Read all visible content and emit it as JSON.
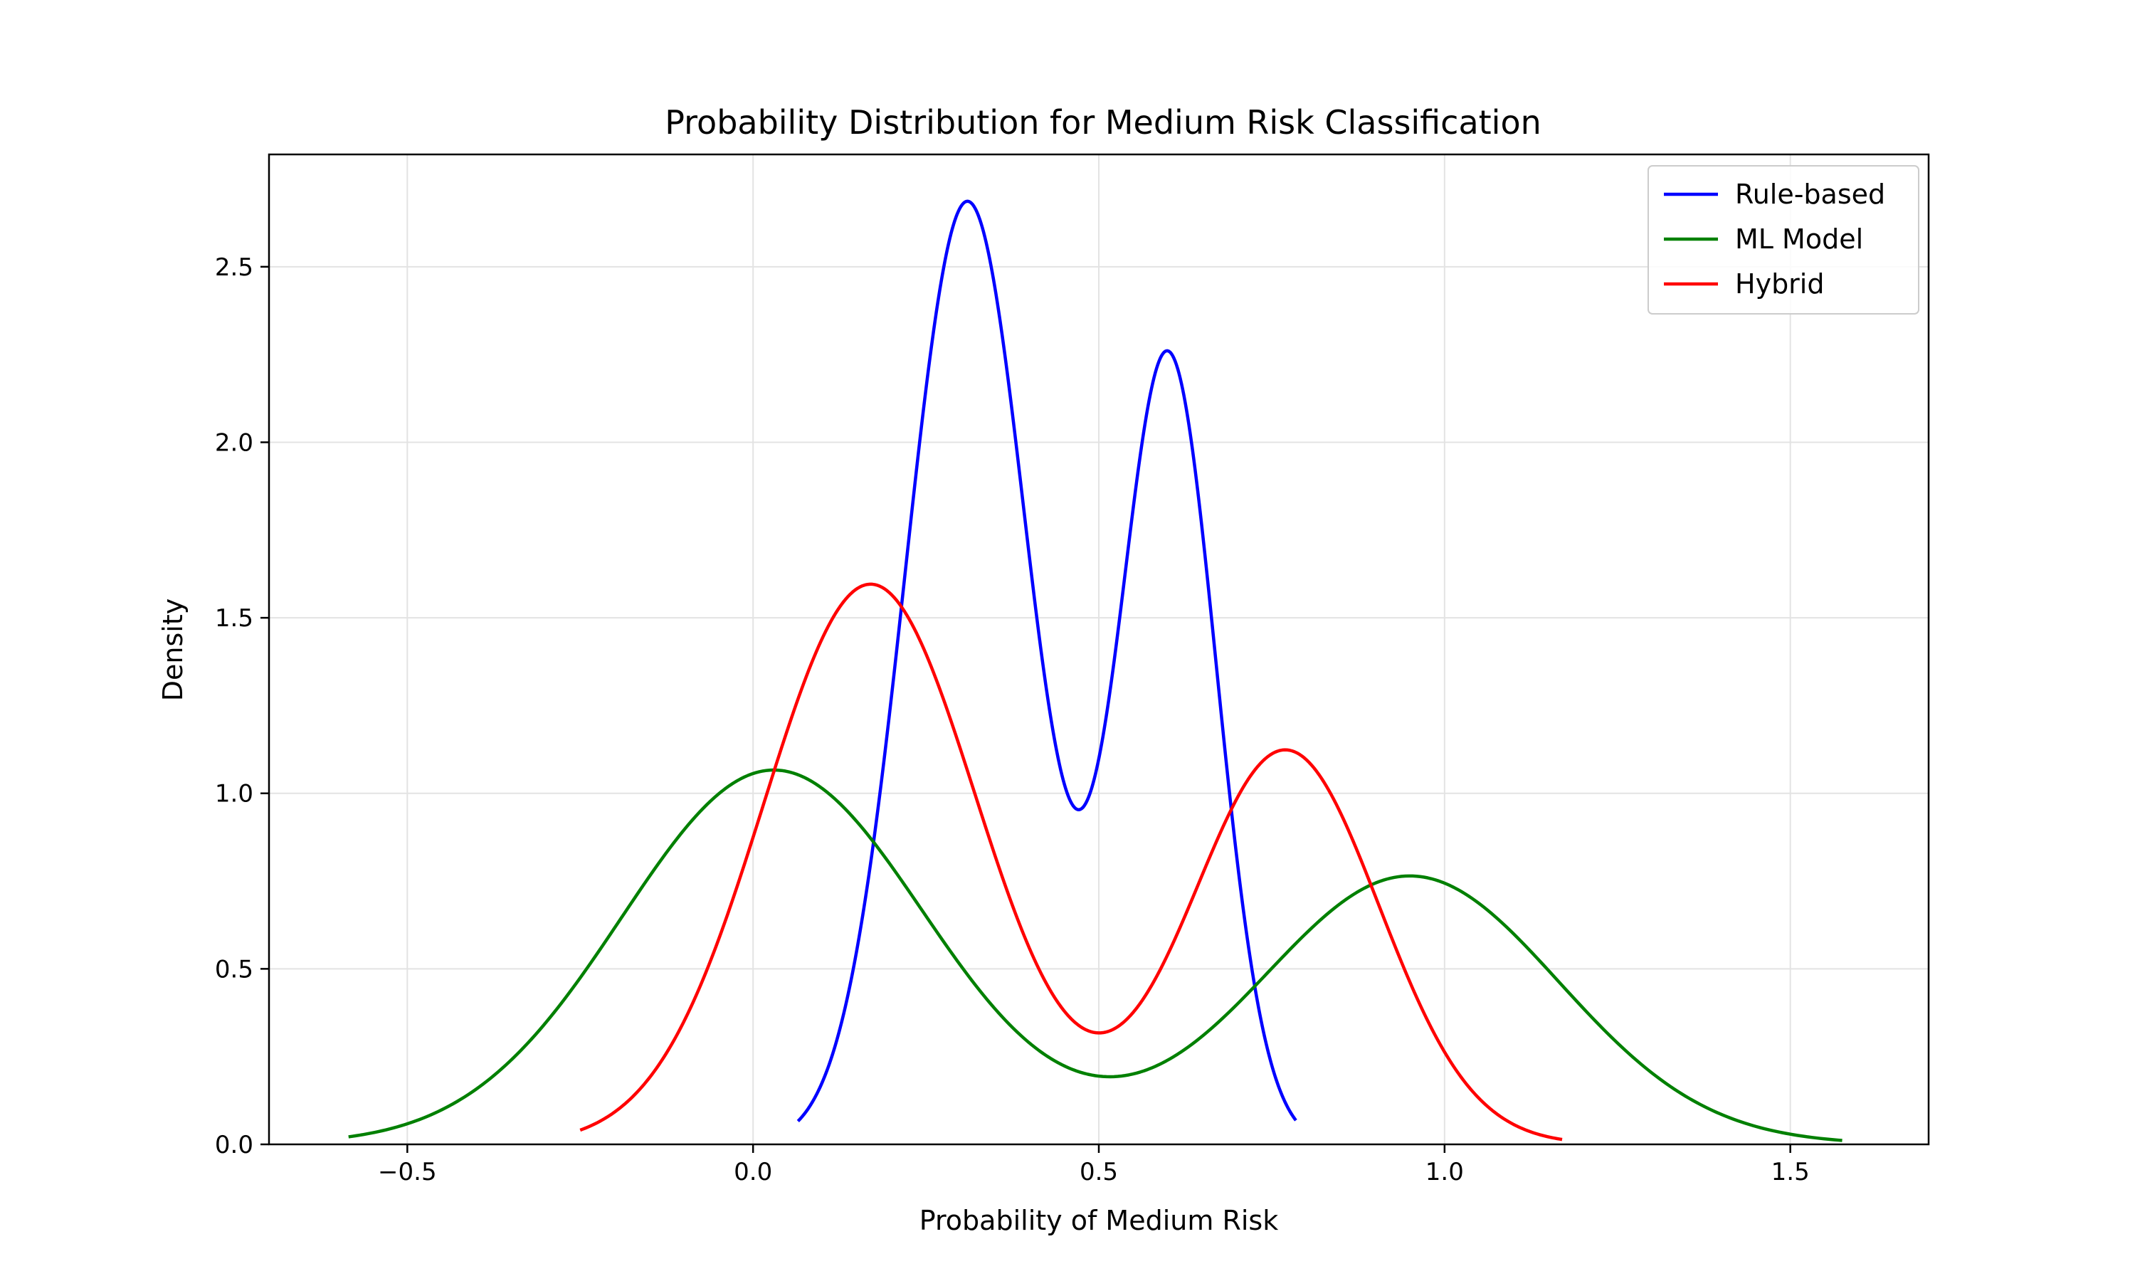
{
  "chart_data": {
    "type": "line",
    "title": "Probability Distribution for Medium Risk Classification",
    "xlabel": "Probability of Medium Risk",
    "ylabel": "Density",
    "xlim": [
      -0.7,
      1.7
    ],
    "ylim": [
      0,
      2.82
    ],
    "xticks": [
      -0.5,
      0.0,
      0.5,
      1.0,
      1.5
    ],
    "xtick_labels": [
      "−0.5",
      "0.0",
      "0.5",
      "1.0",
      "1.5"
    ],
    "yticks": [
      0.0,
      0.5,
      1.0,
      1.5,
      2.0,
      2.5
    ],
    "ytick_labels": [
      "0.0",
      "0.5",
      "1.0",
      "1.5",
      "2.0",
      "2.5"
    ],
    "grid": true,
    "legend_position": "top-right",
    "series": [
      {
        "name": "Rule-based",
        "color": "#0000ff",
        "x_range": [
          0.065,
          0.785
        ],
        "components": [
          {
            "weight": 0.606,
            "mean": 0.31,
            "sd": 0.09
          },
          {
            "weight": 0.394,
            "mean": 0.6,
            "sd": 0.07
          }
        ]
      },
      {
        "name": "ML Model",
        "color": "#008000",
        "x_range": [
          -0.585,
          1.575
        ],
        "components": [
          {
            "weight": 0.588,
            "mean": 0.03,
            "sd": 0.22
          },
          {
            "weight": 0.412,
            "mean": 0.95,
            "sd": 0.215
          }
        ]
      },
      {
        "name": "Hybrid",
        "color": "#ff0000",
        "x_range": [
          -0.25,
          1.17
        ],
        "components": [
          {
            "weight": 0.62,
            "mean": 0.17,
            "sd": 0.155
          },
          {
            "weight": 0.38,
            "mean": 0.77,
            "sd": 0.135
          }
        ]
      }
    ]
  }
}
